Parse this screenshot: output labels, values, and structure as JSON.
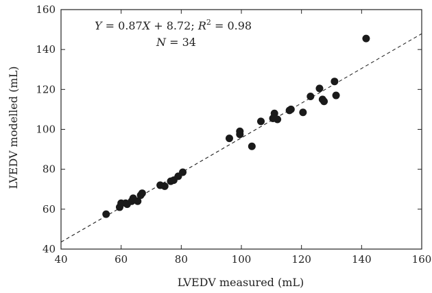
{
  "chart_data": {
    "type": "scatter",
    "title": "",
    "xlabel": "LVEDV measured (mL)",
    "ylabel": "LVEDV modelled (mL)",
    "xlim": [
      40,
      160
    ],
    "ylim": [
      40,
      160
    ],
    "xticks": [
      40,
      60,
      80,
      100,
      120,
      140,
      160
    ],
    "yticks": [
      40,
      60,
      80,
      100,
      120,
      140,
      160
    ],
    "grid": false,
    "annotation": {
      "y_var": "Y",
      "eq_mid": " = 0.87",
      "x_var": "X",
      "eq_tail": " + 8.72; ",
      "r_var": "R",
      "r_sup": "2",
      "r_tail": " = 0.98",
      "n_var": "N",
      "n_tail": " = 34"
    },
    "fit_line": {
      "slope": 0.87,
      "intercept": 8.72,
      "style": "dashed"
    },
    "series": [
      {
        "marker": "circle",
        "color": "#1a1a1a",
        "points": [
          [
            55,
            57.5
          ],
          [
            59.5,
            61
          ],
          [
            60,
            63
          ],
          [
            61.5,
            63
          ],
          [
            62,
            62.5
          ],
          [
            63.5,
            64
          ],
          [
            64,
            65.5
          ],
          [
            65.5,
            64
          ],
          [
            66.5,
            67
          ],
          [
            67,
            68
          ],
          [
            73,
            72
          ],
          [
            74.5,
            71.5
          ],
          [
            76.5,
            74
          ],
          [
            77.5,
            74.5
          ],
          [
            79,
            76.5
          ],
          [
            80.5,
            78.5
          ],
          [
            96,
            95.5
          ],
          [
            99.5,
            97.5
          ],
          [
            99.5,
            99
          ],
          [
            103.5,
            91.5
          ],
          [
            106.5,
            104
          ],
          [
            110.5,
            105.5
          ],
          [
            111,
            108
          ],
          [
            112,
            105
          ],
          [
            116,
            109.5
          ],
          [
            116.5,
            110
          ],
          [
            120.5,
            108.5
          ],
          [
            123,
            116.5
          ],
          [
            126,
            120.5
          ],
          [
            127,
            115
          ],
          [
            127.5,
            114
          ],
          [
            131,
            124
          ],
          [
            131.5,
            117
          ],
          [
            141.5,
            145.5
          ]
        ]
      }
    ]
  }
}
